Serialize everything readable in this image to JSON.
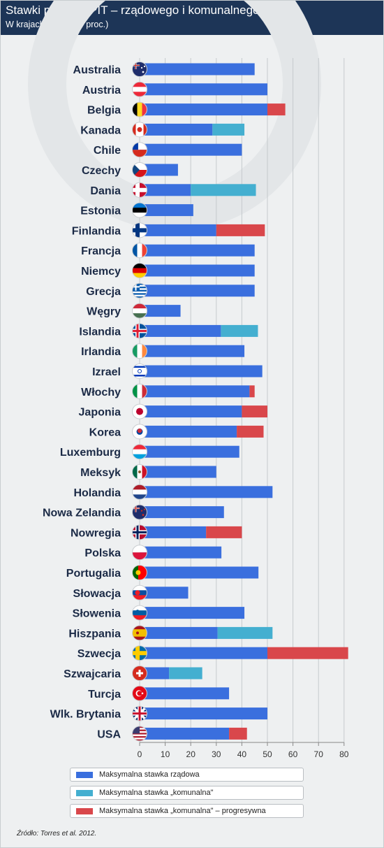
{
  "header": {
    "title": "Stawki podatku PIT – rządowego i komunalnego",
    "subtitle": "W krajach OECD (w proc.)"
  },
  "legend": [
    {
      "label": "Maksymalna stawka rządowa",
      "color": "#3a6fde"
    },
    {
      "label": "Maksymalna stawka „komunalna\"",
      "color": "#44afd0"
    },
    {
      "label": "Maksymalna stawka „komunalna\" – progresywna",
      "color": "#d9474b"
    }
  ],
  "source": "Źródło: Torres et al. 2012.",
  "chart_data": {
    "type": "bar",
    "orientation": "horizontal",
    "stacked": true,
    "title": "Stawki podatku PIT – rządowego i komunalnego",
    "subtitle": "W krajach OECD (w proc.)",
    "xlim": [
      0,
      80
    ],
    "xticks": [
      0,
      10,
      20,
      30,
      40,
      50,
      60,
      70,
      80
    ],
    "grid": "vertical",
    "legend_position": "bottom",
    "categories": [
      "Australia",
      "Austria",
      "Belgia",
      "Kanada",
      "Chile",
      "Czechy",
      "Dania",
      "Estonia",
      "Finlandia",
      "Francja",
      "Niemcy",
      "Grecja",
      "Węgry",
      "Islandia",
      "Irlandia",
      "Izrael",
      "Włochy",
      "Japonia",
      "Korea",
      "Luxemburg",
      "Meksyk",
      "Holandia",
      "Nowa Zelandia",
      "Nowregia",
      "Polska",
      "Portugalia",
      "Słowacja",
      "Słowenia",
      "Hiszpania",
      "Szwecja",
      "Szwajcaria",
      "Turcja",
      "Wlk. Brytania",
      "USA"
    ],
    "flag_icons": [
      "australia-flag-icon",
      "austria-flag-icon",
      "belgium-flag-icon",
      "canada-flag-icon",
      "chile-flag-icon",
      "czech-flag-icon",
      "denmark-flag-icon",
      "estonia-flag-icon",
      "finland-flag-icon",
      "france-flag-icon",
      "germany-flag-icon",
      "greece-flag-icon",
      "hungary-flag-icon",
      "iceland-flag-icon",
      "ireland-flag-icon",
      "israel-flag-icon",
      "italy-flag-icon",
      "japan-flag-icon",
      "korea-flag-icon",
      "luxembourg-flag-icon",
      "mexico-flag-icon",
      "netherlands-flag-icon",
      "new-zealand-flag-icon",
      "norway-flag-icon",
      "poland-flag-icon",
      "portugal-flag-icon",
      "slovakia-flag-icon",
      "slovenia-flag-icon",
      "spain-flag-icon",
      "sweden-flag-icon",
      "switzerland-flag-icon",
      "turkey-flag-icon",
      "uk-flag-icon",
      "usa-flag-icon"
    ],
    "series": [
      {
        "name": "Maksymalna stawka rządowa",
        "color": "#3a6fde",
        "values": [
          45,
          50,
          50,
          28.5,
          40,
          15,
          20,
          21,
          30,
          45,
          45,
          45,
          16,
          31.8,
          41,
          48,
          43,
          40,
          38,
          39,
          30,
          52,
          33,
          26,
          32,
          46.5,
          19,
          41,
          30.5,
          50,
          11.5,
          35,
          50,
          35
        ]
      },
      {
        "name": "Maksymalna stawka „komunalna\"",
        "color": "#44afd0",
        "values": [
          0,
          0,
          0,
          12.5,
          0,
          0,
          25.5,
          0,
          0,
          0,
          0,
          0,
          0,
          14.5,
          0,
          0,
          0,
          0,
          0,
          0,
          0,
          0,
          0,
          0,
          0,
          0,
          0,
          0,
          21.5,
          0,
          13,
          0,
          0,
          0
        ]
      },
      {
        "name": "Maksymalna stawka „komunalna\" – progresywna",
        "color": "#d9474b",
        "values": [
          0,
          0,
          7,
          0,
          0,
          0,
          0,
          0,
          19,
          0,
          0,
          0,
          0,
          0,
          0,
          0,
          2,
          10,
          10.5,
          0,
          0,
          0,
          0,
          14,
          0,
          0,
          0,
          0,
          0,
          31.6,
          0,
          0,
          0,
          7
        ]
      }
    ]
  }
}
